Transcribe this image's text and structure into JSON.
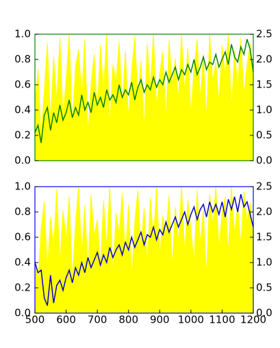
{
  "chart_data": [
    {
      "type": "line",
      "x": [
        500,
        510,
        520,
        530,
        540,
        550,
        560,
        570,
        580,
        590,
        600,
        610,
        620,
        630,
        640,
        650,
        660,
        670,
        680,
        690,
        700,
        710,
        720,
        730,
        740,
        750,
        760,
        770,
        780,
        790,
        800,
        810,
        820,
        830,
        840,
        850,
        860,
        870,
        880,
        890,
        900,
        910,
        920,
        930,
        940,
        950,
        960,
        970,
        980,
        990,
        1000,
        1010,
        1020,
        1030,
        1040,
        1050,
        1060,
        1070,
        1080,
        1090,
        1100,
        1110,
        1120,
        1130,
        1140,
        1150,
        1160,
        1170,
        1180,
        1190,
        1200
      ],
      "xlim": [
        500,
        1200
      ],
      "ylim": [
        0,
        1
      ],
      "yticks": [
        {
          "value": 0,
          "label": "0.0"
        },
        0.2,
        0.4,
        0.6,
        0.8,
        {
          "value": 1,
          "label": "1.0"
        }
      ],
      "y2lim": [
        0,
        2.5
      ],
      "y2ticks": [
        {
          "value": 0,
          "label": "0.0"
        },
        0.5,
        {
          "value": 1,
          "label": "1.0"
        },
        1.5,
        {
          "value": 2,
          "label": "2.0"
        },
        2.5
      ],
      "spine_color": "#008000",
      "series": [
        {
          "color": "#ffff00",
          "fill": true,
          "values": [
            0.45,
            0.72,
            0.18,
            0.55,
            0.93,
            0.31,
            0.82,
            0.48,
            0.97,
            0.36,
            0.63,
            1.0,
            0.29,
            0.74,
            0.88,
            0.52,
            0.96,
            0.21,
            0.61,
            0.84,
            0.39,
            0.91,
            0.57,
            1.0,
            0.28,
            0.76,
            0.62,
            0.94,
            0.43,
            0.87,
            0.33,
            0.71,
            0.98,
            0.51,
            0.79,
            0.24,
            0.92,
            0.58,
            1.0,
            0.42,
            0.69,
            0.86,
            0.31,
            0.95,
            0.6,
            0.81,
            0.47,
            1.0,
            0.54,
            0.89,
            0.37,
            0.73,
            0.96,
            0.49,
            0.84,
            0.32,
            1.0,
            0.62,
            0.78,
            0.46,
            0.91,
            0.68,
            1.0,
            0.41,
            0.87,
            0.59,
            0.97,
            0.52,
            0.76,
            0.93,
            0.64
          ]
        },
        {
          "color": "#008000",
          "axis": "y2",
          "values": [
            0.55,
            0.7,
            0.35,
            0.9,
            1.05,
            0.6,
            0.95,
            0.75,
            1.1,
            0.8,
            0.95,
            1.2,
            0.85,
            1.05,
            0.9,
            1.3,
            1.0,
            1.15,
            0.95,
            1.35,
            1.1,
            1.25,
            1.05,
            1.4,
            1.2,
            1.3,
            1.15,
            1.5,
            1.25,
            1.4,
            1.3,
            1.55,
            1.2,
            1.45,
            1.6,
            1.35,
            1.5,
            1.4,
            1.65,
            1.45,
            1.6,
            1.5,
            1.75,
            1.55,
            1.7,
            1.85,
            1.6,
            1.8,
            1.7,
            1.9,
            1.75,
            2.0,
            1.7,
            1.85,
            2.05,
            1.8,
            1.95,
            1.9,
            2.1,
            1.85,
            2.0,
            2.15,
            1.9,
            2.3,
            2.05,
            1.95,
            2.25,
            2.1,
            2.4,
            2.2,
            1.75
          ]
        }
      ]
    },
    {
      "type": "line",
      "x": [
        500,
        510,
        520,
        530,
        540,
        550,
        560,
        570,
        580,
        590,
        600,
        610,
        620,
        630,
        640,
        650,
        660,
        670,
        680,
        690,
        700,
        710,
        720,
        730,
        740,
        750,
        760,
        770,
        780,
        790,
        800,
        810,
        820,
        830,
        840,
        850,
        860,
        870,
        880,
        890,
        900,
        910,
        920,
        930,
        940,
        950,
        960,
        970,
        980,
        990,
        1000,
        1010,
        1020,
        1030,
        1040,
        1050,
        1060,
        1070,
        1080,
        1090,
        1100,
        1110,
        1120,
        1130,
        1140,
        1150,
        1160,
        1170,
        1180,
        1190,
        1200
      ],
      "xlim": [
        500,
        1200
      ],
      "xticks": [
        500,
        600,
        700,
        800,
        900,
        1000,
        1100,
        1200
      ],
      "ylim": [
        0,
        1
      ],
      "yticks": [
        {
          "value": 0,
          "label": "0.0"
        },
        0.2,
        0.4,
        0.6,
        0.8,
        {
          "value": 1,
          "label": "1.0"
        }
      ],
      "y2lim": [
        0,
        2.5
      ],
      "y2ticks": [
        {
          "value": 0,
          "label": "0.0"
        },
        0.5,
        {
          "value": 1,
          "label": "1.0"
        },
        1.5,
        {
          "value": 2,
          "label": "2.0"
        },
        2.5
      ],
      "spine_color": "#0000ff",
      "series": [
        {
          "color": "#ffff00",
          "fill": true,
          "values": [
            0.42,
            0.25,
            0.67,
            0.88,
            0.34,
            0.76,
            0.53,
            0.98,
            0.39,
            0.81,
            0.58,
            0.92,
            0.27,
            0.7,
            1.0,
            0.46,
            0.85,
            0.33,
            0.94,
            0.61,
            0.74,
            0.36,
            0.89,
            0.52,
            1.0,
            0.3,
            0.79,
            0.63,
            0.95,
            0.44,
            0.86,
            0.27,
            0.72,
            0.97,
            0.5,
            0.83,
            0.38,
            0.91,
            0.59,
            1.0,
            0.45,
            0.77,
            0.62,
            0.93,
            0.35,
            0.84,
            0.56,
            1.0,
            0.48,
            0.9,
            0.66,
            0.4,
            0.97,
            0.55,
            0.82,
            0.29,
            0.94,
            0.7,
            1.0,
            0.51,
            0.79,
            0.92,
            0.47,
            1.0,
            0.63,
            0.86,
            0.54,
            0.96,
            0.72,
            0.88,
            0.6
          ]
        },
        {
          "color": "#0000cc",
          "axis": "y2",
          "values": [
            1.0,
            0.8,
            0.85,
            0.3,
            0.15,
            0.75,
            0.2,
            0.55,
            0.65,
            0.45,
            0.7,
            0.85,
            0.6,
            0.9,
            0.75,
            1.0,
            0.8,
            1.1,
            0.9,
            1.05,
            1.2,
            0.95,
            1.15,
            1.0,
            1.3,
            1.1,
            1.25,
            1.35,
            1.15,
            1.4,
            1.25,
            1.5,
            1.3,
            1.45,
            1.6,
            1.35,
            1.55,
            1.5,
            1.7,
            1.45,
            1.65,
            1.55,
            1.8,
            1.6,
            1.75,
            1.9,
            1.7,
            1.85,
            2.0,
            1.75,
            1.95,
            2.1,
            1.85,
            2.05,
            2.15,
            1.9,
            2.2,
            2.0,
            2.15,
            1.95,
            2.2,
            1.9,
            2.25,
            2.05,
            2.3,
            2.0,
            2.35,
            2.1,
            2.2,
            1.95,
            1.7
          ]
        }
      ]
    }
  ]
}
